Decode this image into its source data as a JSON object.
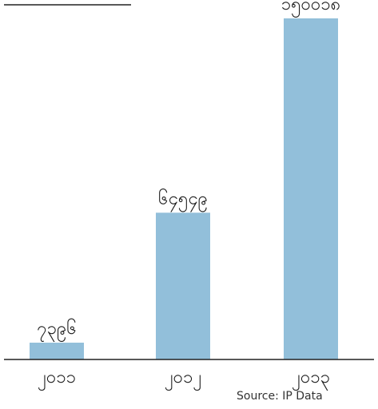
{
  "chart_data": {
    "type": "bar",
    "categories": [
      "၂၀၁၁",
      "၂၀၁၂",
      "၂၀၁၃"
    ],
    "values": [
      7396,
      64549,
      150018
    ],
    "value_labels": [
      "၇၃၉၆",
      "၆၄၅၄၉",
      "၁၅၀၀၁၈"
    ],
    "ylim": [
      0,
      156000
    ],
    "grid": false,
    "bar_color": "#92bfda"
  },
  "source": "Source: IP Data"
}
